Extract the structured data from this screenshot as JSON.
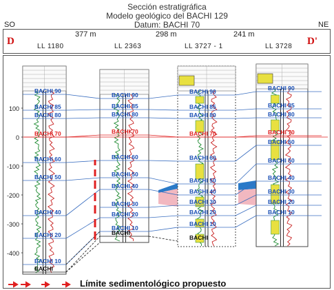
{
  "title": {
    "line1": "Sección estratigráfica",
    "line2": "Modelo geológico del BACHI 129",
    "line3": "Datum: BACHI 70"
  },
  "directions": {
    "left": "SO",
    "right": "NE"
  },
  "distances": [
    "377 m",
    "298 m",
    "241 m"
  ],
  "section_labels": {
    "start": "D",
    "end": "D'"
  },
  "wells": [
    "LL 1180",
    "LL 2363",
    "LL 3727 - 1",
    "LL 3728"
  ],
  "y_axis": {
    "ticks": [
      "100",
      "0",
      "-100",
      "-200",
      "-300",
      "-400"
    ]
  },
  "markers": {
    "w1": [
      "BACHI 90",
      "BACHI 85",
      "BACHI 80",
      "BACHI 70",
      "BACHI 60",
      "BACHI 50",
      "BACHI 40",
      "BACHI 20",
      "BACHI 10",
      "BACHI"
    ],
    "w2": [
      "BACHI 90",
      "BACHI 85",
      "BACHI 80",
      "BACHI 70",
      "BACHI 60",
      "BACHI 50",
      "BACHI 40",
      "BACHI 30",
      "BACHI 20",
      "BACHI 10",
      "BACHI"
    ],
    "w3": [
      "BACHI 90",
      "BACHI 85",
      "BACHI 80",
      "BACHI 70",
      "BACHI 60",
      "BACHI 50",
      "BACHI 40",
      "BACHI 30",
      "BACHI 20",
      "BACHI 10",
      "BACHI"
    ],
    "w4": [
      "BACHI 90",
      "BACHI 85",
      "BACHI 80",
      "BACHI 70",
      "BACHI 60",
      "BACHI 50",
      "BACHI 40",
      "BACHI 30",
      "BACHI 20",
      "BACHI 10"
    ]
  },
  "legend": {
    "caption": "Límite sedimentológico propuesto"
  },
  "colors": {
    "marker_text": "#1a4fb5",
    "datum": "#e02020",
    "boundary": "#e02020",
    "fill_yellow": "#e8e040",
    "fill_blue": "#2a7ac8",
    "fill_pink": "#f2b8c0"
  }
}
